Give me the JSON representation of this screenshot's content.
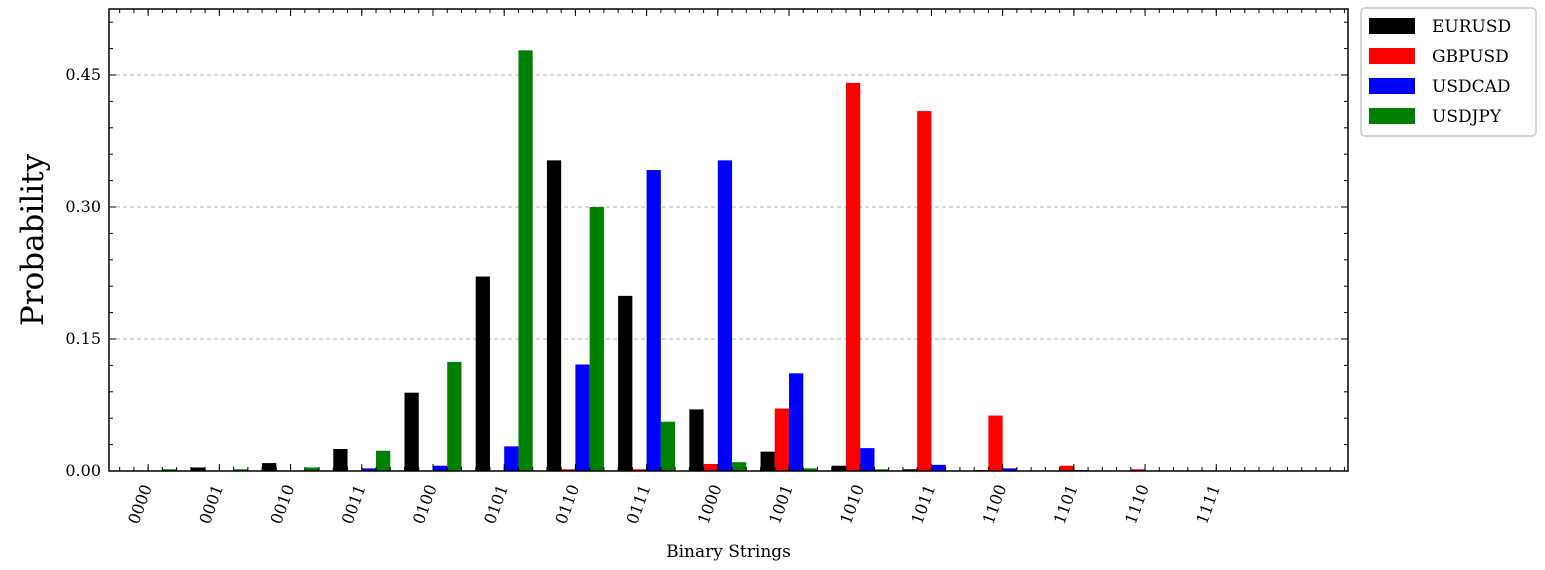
{
  "chart_data": {
    "type": "bar",
    "xlabel": "Binary Strings",
    "ylabel": "Probability",
    "ylim": [
      0,
      0.525
    ],
    "yticks": [
      0.0,
      0.15,
      0.3,
      0.45
    ],
    "ytick_labels": [
      "0.00",
      "0.15",
      "0.30",
      "0.45"
    ],
    "grid": "horizontal-dashed",
    "legend_position": "outside-top-right",
    "categories": [
      "0000",
      "0001",
      "0010",
      "0011",
      "0100",
      "0101",
      "0110",
      "0111",
      "1000",
      "1001",
      "1010",
      "1011",
      "1100",
      "1101",
      "1110",
      "1111"
    ],
    "series": [
      {
        "name": "EURUSD",
        "color": "#000000",
        "values": [
          0.0,
          0.004,
          0.009,
          0.025,
          0.089,
          0.221,
          0.353,
          0.199,
          0.07,
          0.022,
          0.006,
          0.002,
          0.001,
          0.0,
          0.0,
          0.0
        ]
      },
      {
        "name": "GBPUSD",
        "color": "#ff0000",
        "values": [
          0.0,
          0.0,
          0.0,
          0.0,
          0.0,
          0.0,
          0.002,
          0.002,
          0.008,
          0.071,
          0.441,
          0.409,
          0.063,
          0.006,
          0.002,
          0.0
        ]
      },
      {
        "name": "USDCAD",
        "color": "#0000ff",
        "values": [
          0.0,
          0.0,
          0.0,
          0.003,
          0.006,
          0.028,
          0.121,
          0.342,
          0.353,
          0.111,
          0.026,
          0.007,
          0.003,
          0.001,
          0.0,
          0.0
        ]
      },
      {
        "name": "USDJPY",
        "color": "#008000",
        "values": [
          0.002,
          0.002,
          0.004,
          0.023,
          0.124,
          0.478,
          0.3,
          0.056,
          0.01,
          0.003,
          0.002,
          0.0,
          0.0,
          0.0,
          0.0,
          0.0
        ]
      }
    ]
  }
}
